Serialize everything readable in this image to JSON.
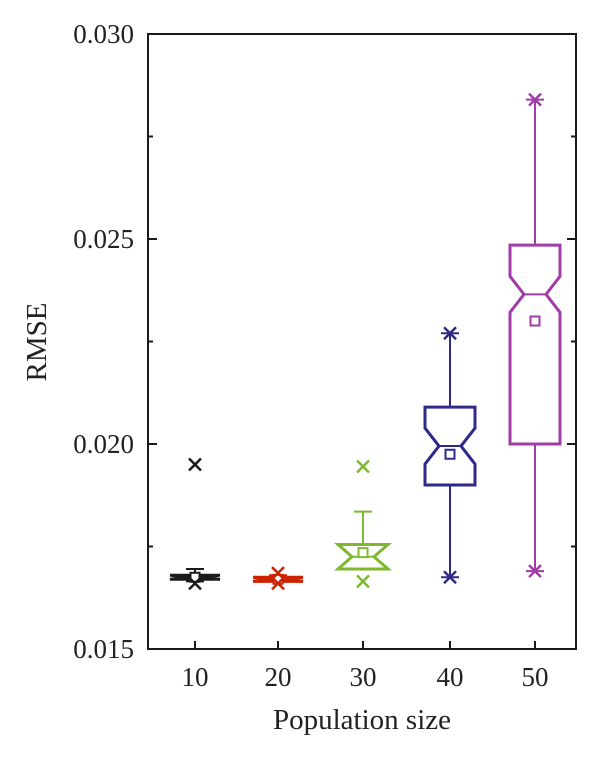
{
  "chart_data": {
    "type": "box",
    "title": "",
    "xlabel": "Population size",
    "ylabel": "RMSE",
    "ylim": [
      0.015,
      0.03
    ],
    "yticks": [
      0.015,
      0.02,
      0.025,
      0.03
    ],
    "ytick_labels": [
      "0.015",
      "0.020",
      "0.025",
      "0.030"
    ],
    "categories": [
      "10",
      "20",
      "30",
      "40",
      "50"
    ],
    "grid": false,
    "legend": "none",
    "boxes": [
      {
        "category": "10",
        "color": "#1a1a1a",
        "whisker_low": 0.01665,
        "q1": 0.0167,
        "median": 0.01675,
        "q3": 0.0168,
        "whisker_high": 0.01695,
        "mean": 0.01675,
        "outliers": [
          0.0195,
          0.0166
        ]
      },
      {
        "category": "20",
        "color": "#cc2200",
        "whisker_low": 0.01665,
        "q1": 0.01665,
        "median": 0.0167,
        "q3": 0.01675,
        "whisker_high": 0.0168,
        "mean": 0.0167,
        "outliers": [
          0.01685,
          0.0166
        ]
      },
      {
        "category": "30",
        "color": "#7db82e",
        "whisker_low": 0.01695,
        "q1": 0.01695,
        "median": 0.01725,
        "q3": 0.01755,
        "whisker_high": 0.01835,
        "mean": 0.01735,
        "outliers": [
          0.01945,
          0.01665
        ]
      },
      {
        "category": "40",
        "color": "#2e2a8a",
        "whisker_low": 0.01675,
        "q1": 0.019,
        "median": 0.01995,
        "q3": 0.0209,
        "whisker_high": 0.0227,
        "mean": 0.01975,
        "outliers": [
          0.0227,
          0.01675
        ]
      },
      {
        "category": "50",
        "color": "#a13ba8",
        "whisker_low": 0.0169,
        "q1": 0.02,
        "median": 0.02365,
        "q3": 0.02485,
        "whisker_high": 0.0284,
        "mean": 0.023,
        "outliers": [
          0.0284,
          0.0169
        ]
      }
    ]
  }
}
